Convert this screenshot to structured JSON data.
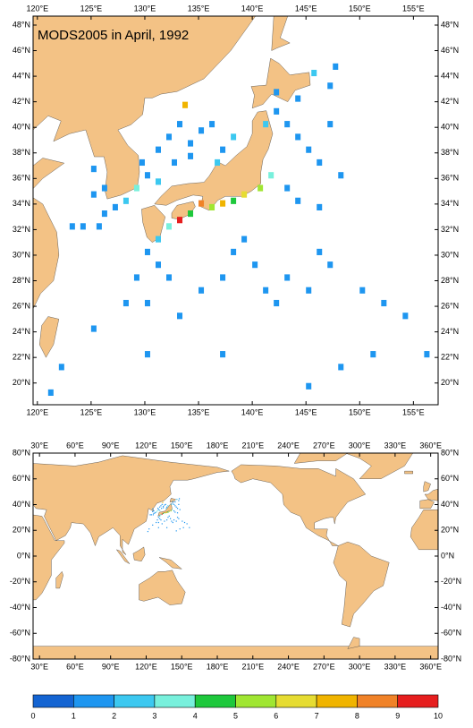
{
  "title": "MODS2005 in April, 1992",
  "maps": [
    {
      "xlim": [
        119.6,
        157.3
      ],
      "ylim": [
        18.3,
        48.7
      ],
      "xticks": [
        {
          "value": 120,
          "label": "120°E"
        },
        {
          "value": 125,
          "label": "125°E"
        },
        {
          "value": 130,
          "label": "130°E"
        },
        {
          "value": 135,
          "label": "135°E"
        },
        {
          "value": 140,
          "label": "140°E"
        },
        {
          "value": 145,
          "label": "145°E"
        },
        {
          "value": 150,
          "label": "150°E"
        },
        {
          "value": 155,
          "label": "155°E"
        }
      ],
      "yticks": [
        {
          "value": 20,
          "label": "20°N"
        },
        {
          "value": 22,
          "label": "22°N"
        },
        {
          "value": 24,
          "label": "24°N"
        },
        {
          "value": 26,
          "label": "26°N"
        },
        {
          "value": 28,
          "label": "28°N"
        },
        {
          "value": 30,
          "label": "30°N"
        },
        {
          "value": 32,
          "label": "32°N"
        },
        {
          "value": 34,
          "label": "34°N"
        },
        {
          "value": 36,
          "label": "36°N"
        },
        {
          "value": 38,
          "label": "38°N"
        },
        {
          "value": 40,
          "label": "40°N"
        },
        {
          "value": 42,
          "label": "42°N"
        },
        {
          "value": 44,
          "label": "44°N"
        },
        {
          "value": 46,
          "label": "46°N"
        },
        {
          "value": 48,
          "label": "48°N"
        }
      ]
    },
    {
      "xlim": [
        24.6,
        366.3
      ],
      "ylim": [
        -80,
        80
      ],
      "xticks": [
        {
          "value": 30,
          "label": "30°E"
        },
        {
          "value": 60,
          "label": "60°E"
        },
        {
          "value": 90,
          "label": "90°E"
        },
        {
          "value": 120,
          "label": "120°E"
        },
        {
          "value": 150,
          "label": "150°E"
        },
        {
          "value": 180,
          "label": "180°E"
        },
        {
          "value": 210,
          "label": "210°E"
        },
        {
          "value": 240,
          "label": "240°E"
        },
        {
          "value": 270,
          "label": "270°E"
        },
        {
          "value": 300,
          "label": "300°E"
        },
        {
          "value": 330,
          "label": "330°E"
        },
        {
          "value": 360,
          "label": "360°E"
        }
      ],
      "yticks": [
        {
          "value": 80,
          "label": "80°N"
        },
        {
          "value": 60,
          "label": "60°N"
        },
        {
          "value": 40,
          "label": "40°N"
        },
        {
          "value": 20,
          "label": "20°N"
        },
        {
          "value": 0,
          "label": "0°N"
        },
        {
          "value": -20,
          "label": "-20°N"
        },
        {
          "value": -40,
          "label": "-40°N"
        },
        {
          "value": -60,
          "label": "-60°N"
        },
        {
          "value": -80,
          "label": "-80°N"
        }
      ]
    }
  ],
  "cells": [
    {
      "lon": 131,
      "lat": 38,
      "value": 1
    },
    {
      "lon": 132,
      "lat": 39,
      "value": 1.5
    },
    {
      "lon": 133,
      "lat": 40,
      "value": 1
    },
    {
      "lon": 134,
      "lat": 38.5,
      "value": 1.2
    },
    {
      "lon": 135,
      "lat": 39.5,
      "value": 1
    },
    {
      "lon": 136,
      "lat": 40,
      "value": 1
    },
    {
      "lon": 137,
      "lat": 38,
      "value": 1.5
    },
    {
      "lon": 138,
      "lat": 39,
      "value": 2
    },
    {
      "lon": 132.5,
      "lat": 37,
      "value": 1
    },
    {
      "lon": 134,
      "lat": 37.5,
      "value": 1.5
    },
    {
      "lon": 136.5,
      "lat": 37,
      "value": 2.5
    },
    {
      "lon": 129.5,
      "lat": 37,
      "value": 1
    },
    {
      "lon": 130,
      "lat": 36,
      "value": 1.5
    },
    {
      "lon": 131,
      "lat": 35.5,
      "value": 2
    },
    {
      "lon": 129,
      "lat": 35,
      "value": 3
    },
    {
      "lon": 128,
      "lat": 34,
      "value": 2
    },
    {
      "lon": 127,
      "lat": 33.5,
      "value": 1.5
    },
    {
      "lon": 126,
      "lat": 33,
      "value": 1
    },
    {
      "lon": 125.5,
      "lat": 32,
      "value": 1
    },
    {
      "lon": 124,
      "lat": 32,
      "value": 1
    },
    {
      "lon": 123,
      "lat": 32,
      "value": 1
    },
    {
      "lon": 126,
      "lat": 35,
      "value": 1.2
    },
    {
      "lon": 125,
      "lat": 36.5,
      "value": 1
    },
    {
      "lon": 125,
      "lat": 34.5,
      "value": 1.3
    },
    {
      "lon": 141,
      "lat": 40,
      "value": 2
    },
    {
      "lon": 142,
      "lat": 41,
      "value": 1
    },
    {
      "lon": 143,
      "lat": 40,
      "value": 1.3
    },
    {
      "lon": 144,
      "lat": 39,
      "value": 1
    },
    {
      "lon": 145,
      "lat": 38,
      "value": 1
    },
    {
      "lon": 146,
      "lat": 37,
      "value": 1
    },
    {
      "lon": 147,
      "lat": 40,
      "value": 1
    },
    {
      "lon": 148,
      "lat": 36,
      "value": 1
    },
    {
      "lon": 143,
      "lat": 35,
      "value": 1.5
    },
    {
      "lon": 144,
      "lat": 34,
      "value": 1.2
    },
    {
      "lon": 146,
      "lat": 33.5,
      "value": 1
    },
    {
      "lon": 141.5,
      "lat": 36,
      "value": 3
    },
    {
      "lon": 140.5,
      "lat": 35,
      "value": 5
    },
    {
      "lon": 139,
      "lat": 34.5,
      "value": 6
    },
    {
      "lon": 138,
      "lat": 34,
      "value": 4
    },
    {
      "lon": 137,
      "lat": 33.8,
      "value": 7
    },
    {
      "lon": 136,
      "lat": 33.5,
      "value": 5
    },
    {
      "lon": 135,
      "lat": 33.8,
      "value": 8
    },
    {
      "lon": 134,
      "lat": 33,
      "value": 4
    },
    {
      "lon": 133,
      "lat": 32.5,
      "value": 9
    },
    {
      "lon": 132,
      "lat": 32,
      "value": 3
    },
    {
      "lon": 131,
      "lat": 31,
      "value": 2
    },
    {
      "lon": 130,
      "lat": 30,
      "value": 1.5
    },
    {
      "lon": 131,
      "lat": 29,
      "value": 1
    },
    {
      "lon": 132,
      "lat": 28,
      "value": 1
    },
    {
      "lon": 129,
      "lat": 28,
      "value": 1
    },
    {
      "lon": 128,
      "lat": 26,
      "value": 1
    },
    {
      "lon": 130,
      "lat": 26,
      "value": 1
    },
    {
      "lon": 133,
      "lat": 25,
      "value": 1
    },
    {
      "lon": 135,
      "lat": 27,
      "value": 1
    },
    {
      "lon": 137,
      "lat": 28,
      "value": 1
    },
    {
      "lon": 138,
      "lat": 30,
      "value": 1.5
    },
    {
      "lon": 139,
      "lat": 31,
      "value": 1
    },
    {
      "lon": 140,
      "lat": 29,
      "value": 1
    },
    {
      "lon": 141,
      "lat": 27,
      "value": 1
    },
    {
      "lon": 142,
      "lat": 26,
      "value": 1
    },
    {
      "lon": 143,
      "lat": 28,
      "value": 1
    },
    {
      "lon": 145,
      "lat": 27,
      "value": 1
    },
    {
      "lon": 146,
      "lat": 30,
      "value": 1
    },
    {
      "lon": 147,
      "lat": 29,
      "value": 1
    },
    {
      "lon": 150,
      "lat": 27,
      "value": 1
    },
    {
      "lon": 152,
      "lat": 26,
      "value": 1
    },
    {
      "lon": 154,
      "lat": 25,
      "value": 1
    },
    {
      "lon": 156,
      "lat": 22,
      "value": 1
    },
    {
      "lon": 151,
      "lat": 22,
      "value": 1
    },
    {
      "lon": 148,
      "lat": 21,
      "value": 1
    },
    {
      "lon": 145,
      "lat": 19.5,
      "value": 1
    },
    {
      "lon": 137,
      "lat": 22,
      "value": 1
    },
    {
      "lon": 130,
      "lat": 22,
      "value": 1
    },
    {
      "lon": 125,
      "lat": 24,
      "value": 1
    },
    {
      "lon": 122,
      "lat": 21,
      "value": 1
    },
    {
      "lon": 121,
      "lat": 19,
      "value": 1
    },
    {
      "lon": 145.5,
      "lat": 44,
      "value": 2
    },
    {
      "lon": 147,
      "lat": 43,
      "value": 1
    },
    {
      "lon": 147.5,
      "lat": 44.5,
      "value": 1.5
    },
    {
      "lon": 142,
      "lat": 42.5,
      "value": 1
    },
    {
      "lon": 144,
      "lat": 42,
      "value": 1
    },
    {
      "lon": 133.5,
      "lat": 41.5,
      "value": 7.5
    }
  ],
  "colorbar": {
    "ticks": [
      0,
      1,
      2,
      3,
      4,
      5,
      6,
      7,
      8,
      9,
      10
    ],
    "colors": [
      "#1464d2",
      "#1e96f0",
      "#3cc8f0",
      "#78f0dc",
      "#1ec83c",
      "#a0e632",
      "#e6dc32",
      "#f0b400",
      "#f08228",
      "#e61e1e"
    ]
  }
}
